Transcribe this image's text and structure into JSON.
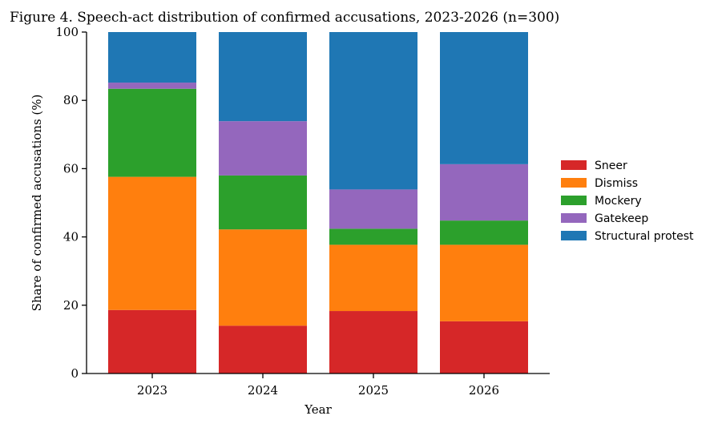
{
  "chart_data": {
    "type": "bar",
    "stacked": true,
    "title": "Figure 4. Speech-act distribution of confirmed accusations, 2023-2026 (n=300)",
    "xlabel": "Year",
    "ylabel": "Share of confirmed accusations (%)",
    "categories": [
      "2023",
      "2024",
      "2025",
      "2026"
    ],
    "ylim": [
      0,
      100
    ],
    "yticks": [
      0,
      20,
      40,
      60,
      80,
      100
    ],
    "grid": false,
    "legend_position": "right",
    "series": [
      {
        "name": "Sneer",
        "color": "#d62728",
        "values": [
          18.6,
          14.0,
          18.3,
          15.3
        ]
      },
      {
        "name": "Dismiss",
        "color": "#ff7f0e",
        "values": [
          39.0,
          28.2,
          19.4,
          22.4
        ]
      },
      {
        "name": "Mockery",
        "color": "#2ca02c",
        "values": [
          25.8,
          15.8,
          4.7,
          7.1
        ]
      },
      {
        "name": "Gatekeep",
        "color": "#9467bd",
        "values": [
          1.8,
          15.9,
          11.5,
          16.5
        ]
      },
      {
        "name": "Structural protest",
        "color": "#1f77b4",
        "values": [
          14.8,
          26.1,
          46.1,
          38.7
        ]
      }
    ]
  }
}
